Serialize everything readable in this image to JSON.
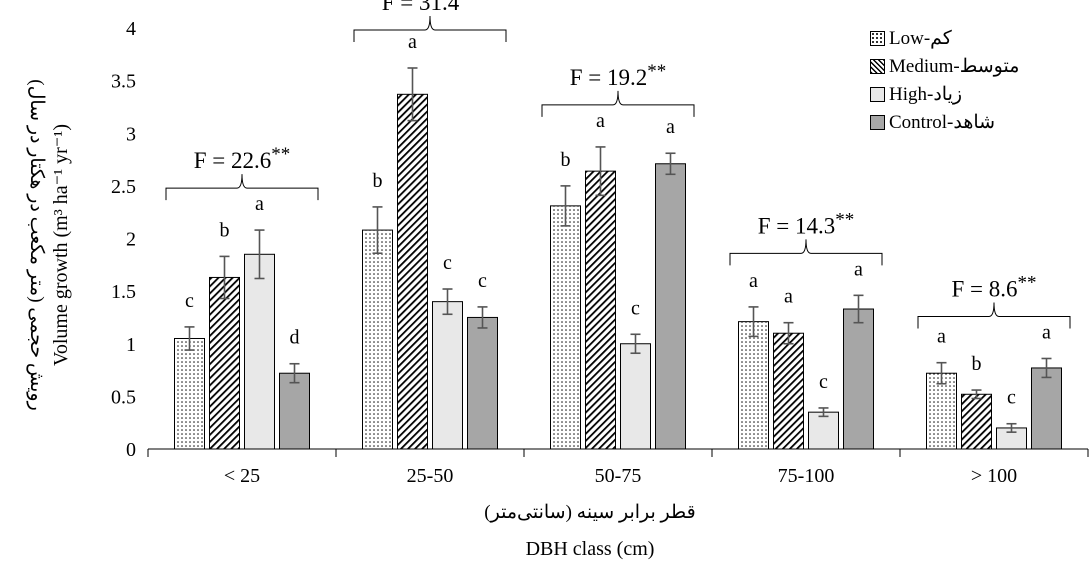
{
  "chart_data": {
    "type": "bar",
    "ylabel_fa": "رویش حجمی (متر مکعب در هکتار در سال)",
    "ylabel_en": "Volume growth (m³ ha⁻¹ yr⁻¹)",
    "xlabel_fa": "قطر برابر سینه (سانتی‌متر)",
    "xlabel_en": "DBH class (cm)",
    "ylim": [
      0,
      4
    ],
    "yticks": [
      "0",
      "0.5",
      "1",
      "1.5",
      "2",
      "2.5",
      "3",
      "3.5",
      "4"
    ],
    "categories": [
      "< 25",
      "25-50",
      "50-75",
      "75-100",
      "> 100"
    ],
    "series": [
      {
        "name": "Low-کم",
        "pattern": "dots",
        "values": [
          1.05,
          2.08,
          2.31,
          1.21,
          0.72
        ],
        "errors": [
          0.11,
          0.22,
          0.19,
          0.14,
          0.1
        ],
        "letters": [
          "c",
          "b",
          "b",
          "a",
          "a"
        ]
      },
      {
        "name": "Medium-متوسط",
        "pattern": "hatch",
        "values": [
          1.63,
          3.37,
          2.64,
          1.1,
          0.52
        ],
        "errors": [
          0.2,
          0.25,
          0.23,
          0.1,
          0.04
        ],
        "letters": [
          "b",
          "a",
          "a",
          "a",
          "b"
        ]
      },
      {
        "name": "High-زیاد",
        "color": "#e8e8e8",
        "values": [
          1.85,
          1.4,
          1.0,
          0.35,
          0.2
        ],
        "errors": [
          0.23,
          0.12,
          0.09,
          0.04,
          0.04
        ],
        "letters": [
          "a",
          "c",
          "c",
          "c",
          "c"
        ]
      },
      {
        "name": "Control-شاهد",
        "color": "#a6a6a6",
        "values": [
          0.72,
          1.25,
          2.71,
          1.33,
          0.77
        ],
        "errors": [
          0.09,
          0.1,
          0.1,
          0.13,
          0.09
        ],
        "letters": [
          "d",
          "c",
          "a",
          "a",
          "a"
        ]
      }
    ],
    "f_stats": [
      "F = 22.6**",
      "F = 31.4**",
      "F = 19.2**",
      "F = 14.3**",
      "F = 8.6**"
    ],
    "legend_position": "top-right",
    "grid": false
  }
}
